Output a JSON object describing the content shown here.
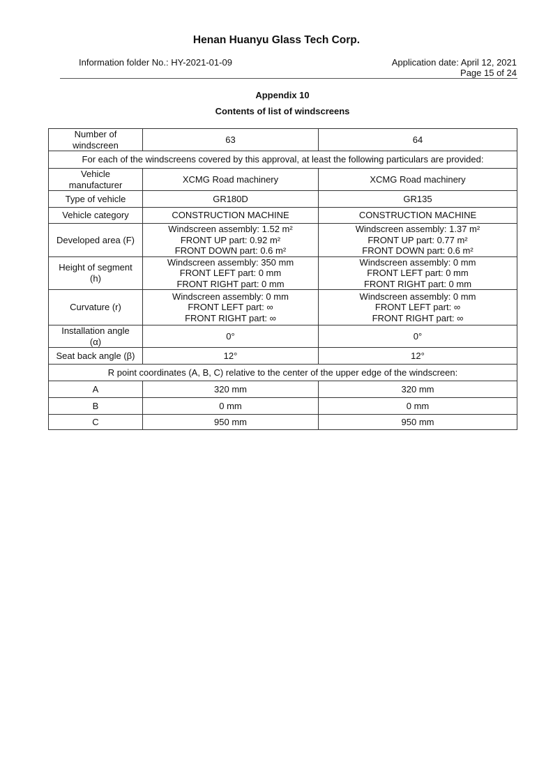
{
  "header": {
    "company": "Henan Huanyu Glass Tech Corp.",
    "folder": "Information folder No.: HY-2021-01-09",
    "application_date": "Application date: April 12, 2021",
    "page": "Page 15 of 24"
  },
  "appendix": "Appendix 10",
  "subtitle": "Contents of list of windscreens",
  "table": {
    "rows": [
      {
        "label": [
          "Number of",
          "windscreen"
        ],
        "c1": [
          "63"
        ],
        "c2": [
          "64"
        ],
        "h": 31
      },
      {
        "span": "For each of the windscreens covered by this approval, at least the following particulars are provided:",
        "h": 25
      },
      {
        "label": [
          "Vehicle",
          "manufacturer"
        ],
        "c1": [
          "XCMG Road machinery"
        ],
        "c2": [
          "XCMG Road machinery"
        ],
        "h": 31
      },
      {
        "label": [
          "Type of vehicle"
        ],
        "c1": [
          "GR180D"
        ],
        "c2": [
          "GR135"
        ],
        "h": 24
      },
      {
        "label": [
          "Vehicle category"
        ],
        "c1": [
          "CONSTRUCTION MACHINE"
        ],
        "c2": [
          "CONSTRUCTION MACHINE"
        ],
        "h": 23
      },
      {
        "label": [
          "Developed area (F)"
        ],
        "c1": [
          "Windscreen assembly: 1.52 m²",
          "FRONT UP part: 0.92 m²",
          "FRONT DOWN part: 0.6 m²"
        ],
        "c2": [
          "Windscreen assembly: 1.37 m²",
          "FRONT UP part: 0.77 m²",
          "FRONT DOWN part: 0.6 m²"
        ],
        "h": 47
      },
      {
        "label": [
          "Height of segment",
          "(h)"
        ],
        "c1": [
          "Windscreen assembly: 350 mm",
          "FRONT LEFT part: 0 mm",
          "FRONT RIGHT part: 0 mm"
        ],
        "c2": [
          "Windscreen assembly: 0 mm",
          "FRONT LEFT part: 0 mm",
          "FRONT RIGHT part: 0 mm"
        ],
        "h": 46
      },
      {
        "label": [
          "Curvature (r)"
        ],
        "c1": [
          "Windscreen assembly: 0 mm",
          "FRONT LEFT part: ∞",
          "FRONT RIGHT part: ∞"
        ],
        "c2": [
          "Windscreen assembly: 0 mm",
          "FRONT LEFT part: ∞",
          "FRONT RIGHT part: ∞"
        ],
        "h": 51
      },
      {
        "label": [
          "Installation angle",
          "(α)"
        ],
        "c1": [
          "0°"
        ],
        "c2": [
          "0°"
        ],
        "h": 31
      },
      {
        "label": [
          "Seat back angle (β)"
        ],
        "c1": [
          "12°"
        ],
        "c2": [
          "12°"
        ],
        "h": 24
      },
      {
        "span": "R point coordinates (A, B, C) relative to the center of the upper edge of the windscreen:",
        "h": 24
      },
      {
        "label": [
          "A"
        ],
        "c1": [
          "320 mm"
        ],
        "c2": [
          "320 mm"
        ],
        "h": 24
      },
      {
        "label": [
          "B"
        ],
        "c1": [
          "0 mm"
        ],
        "c2": [
          "0 mm"
        ],
        "h": 24
      },
      {
        "label": [
          "C"
        ],
        "c1": [
          "950 mm"
        ],
        "c2": [
          "950 mm"
        ],
        "h": 22
      }
    ]
  }
}
